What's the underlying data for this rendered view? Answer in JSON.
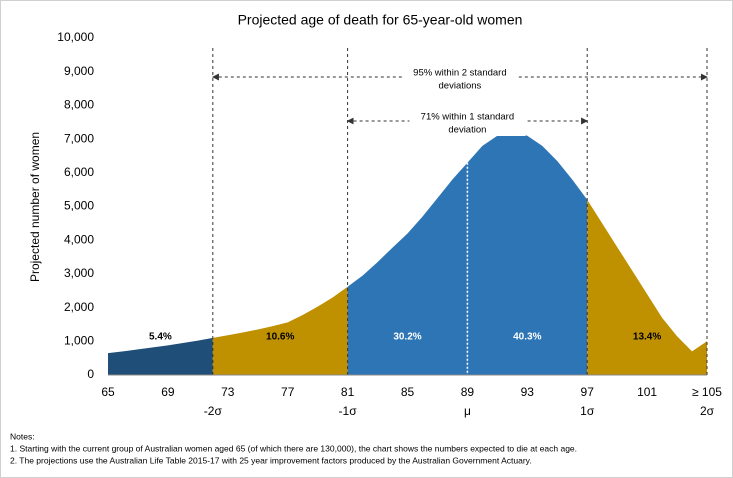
{
  "chart_data": {
    "type": "area",
    "title": "Projected age of death for 65-year-old women",
    "y_label": "Projected number of women",
    "x": [
      65,
      66,
      67,
      68,
      69,
      70,
      71,
      72,
      73,
      74,
      75,
      76,
      77,
      78,
      79,
      80,
      81,
      82,
      83,
      84,
      85,
      86,
      87,
      88,
      89,
      90,
      91,
      92,
      93,
      94,
      95,
      96,
      97,
      98,
      99,
      100,
      101,
      102,
      103,
      104,
      105
    ],
    "values": [
      650,
      700,
      760,
      820,
      880,
      950,
      1020,
      1100,
      1180,
      1260,
      1350,
      1450,
      1560,
      1780,
      2030,
      2300,
      2620,
      2950,
      3350,
      3780,
      4200,
      4700,
      5250,
      5800,
      6300,
      6800,
      7100,
      7200,
      7100,
      6800,
      6350,
      5800,
      5200,
      4500,
      3800,
      3100,
      2400,
      1700,
      1150,
      700,
      1000
    ],
    "xlim": [
      65,
      105
    ],
    "xticks": [
      65,
      69,
      73,
      77,
      81,
      85,
      89,
      93,
      97,
      101,
      {
        "value": 105,
        "label": "≥ 105"
      }
    ],
    "ylim": [
      0,
      10000
    ],
    "yticks": [
      0,
      {
        "value": 1000,
        "label": "1,000"
      },
      {
        "value": 2000,
        "label": "2,000"
      },
      {
        "value": 3000,
        "label": "3,000"
      },
      {
        "value": 4000,
        "label": "4,000"
      },
      {
        "value": 5000,
        "label": "5,000"
      },
      {
        "value": 6000,
        "label": "6,000"
      },
      {
        "value": 7000,
        "label": "7,000"
      },
      {
        "value": 8000,
        "label": "8,000"
      },
      {
        "value": 9000,
        "label": "9,000"
      },
      {
        "value": 10000,
        "label": "10,000"
      }
    ],
    "bands": {
      "bounds": [
        65,
        72,
        81,
        89,
        97,
        105
      ],
      "colors": [
        "#1f4e79",
        "#bf9000",
        "#2e75b6",
        "#2e75b6",
        "#bf9000"
      ],
      "values": [
        5.4,
        10.6,
        30.2,
        40.3,
        13.4
      ],
      "value_labels": [
        "5.4%",
        "10.6%",
        "30.2%",
        "40.3%",
        "13.4%"
      ]
    },
    "sigma_marks": [
      {
        "value": 72,
        "label": "-2σ"
      },
      {
        "value": 81,
        "label": "-1σ"
      },
      {
        "value": 89,
        "label": "μ"
      },
      {
        "value": 97,
        "label": "1σ"
      },
      {
        "value": 105,
        "label": "2σ"
      }
    ],
    "annotations": [
      {
        "from": 72,
        "to": 105,
        "lines": [
          "95% within 2 standard",
          "deviations"
        ]
      },
      {
        "from": 81,
        "to": 97,
        "lines": [
          "71% within 1 standard",
          "deviation"
        ]
      }
    ],
    "notes": [
      "Notes:",
      "1. Starting with the current group of Australian women aged 65 (of which there are 130,000), the chart shows the numbers expected to die at each age.",
      "2. The projections  use the Australian Life Table 2015-17 with 25 year improvement factors produced by the Australian Government Actuary."
    ]
  }
}
